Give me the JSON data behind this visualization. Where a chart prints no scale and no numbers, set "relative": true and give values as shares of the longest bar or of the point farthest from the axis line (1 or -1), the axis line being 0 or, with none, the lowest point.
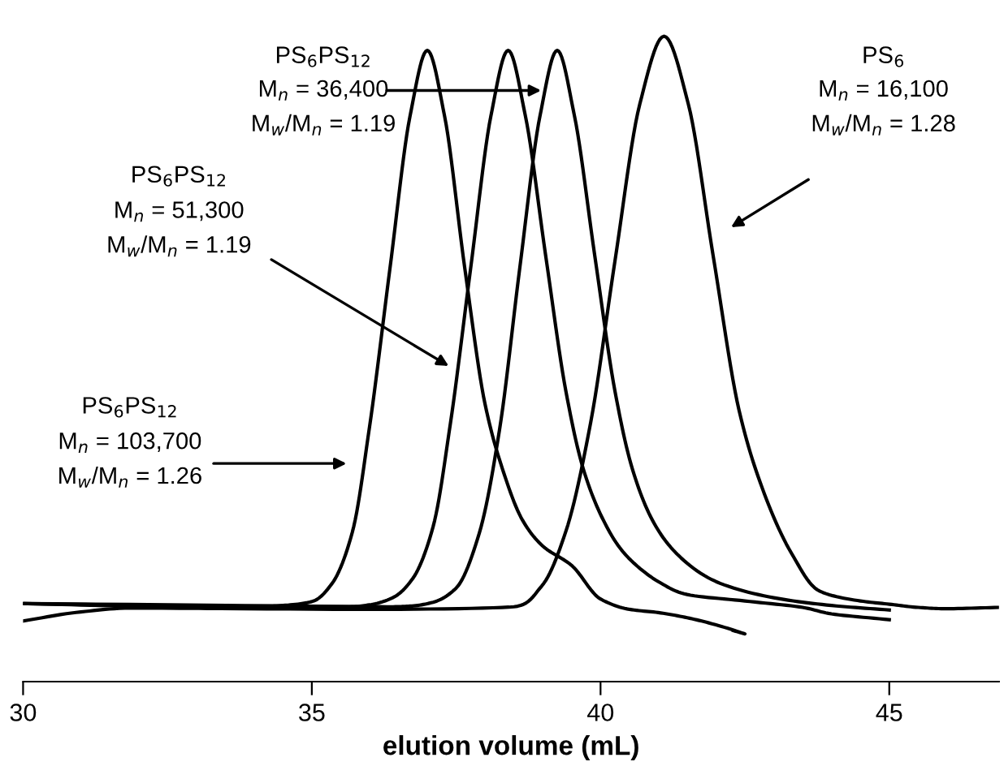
{
  "chart_data": {
    "type": "line",
    "relative": true,
    "xlabel": "elution volume (mL)",
    "xlim": [
      30,
      46.9
    ],
    "xticks": [
      30,
      35,
      40,
      45
    ],
    "grid": false,
    "legend": false,
    "marker": "none",
    "line_style": "solid",
    "series": [
      {
        "color": "#000000",
        "x": [
          30,
          32,
          34,
          34.5,
          35.0,
          35.35,
          35.7,
          36.0,
          36.35,
          36.7,
          37.0,
          37.3,
          37.65,
          38.0,
          38.3,
          38.65,
          39.0,
          39.5,
          40.0,
          40.5,
          41.0,
          41.5,
          42.0,
          42.5,
          42.3
        ],
        "values": [
          0.121,
          0.117,
          0.116,
          0.118,
          0.124,
          0.152,
          0.231,
          0.395,
          0.638,
          0.876,
          0.978,
          0.876,
          0.64,
          0.43,
          0.33,
          0.25,
          0.21,
          0.18,
          0.128,
          0.112,
          0.107,
          0.099,
          0.088,
          0.074,
          0.079
        ]
      },
      {
        "color": "#000000",
        "x": [
          30,
          34,
          35.6,
          36.0,
          36.4,
          36.75,
          37.1,
          37.4,
          37.75,
          38.1,
          38.4,
          38.7,
          39.05,
          39.4,
          39.7,
          40.05,
          40.4,
          41.0,
          41.5,
          42.5,
          43.5,
          44.0,
          45.0
        ],
        "values": [
          0.121,
          0.116,
          0.116,
          0.119,
          0.13,
          0.16,
          0.24,
          0.4,
          0.64,
          0.876,
          0.978,
          0.876,
          0.66,
          0.45,
          0.33,
          0.25,
          0.2,
          0.155,
          0.135,
          0.125,
          0.115,
          0.105,
          0.096
        ]
      },
      {
        "color": "#000000",
        "x": [
          30,
          36.3,
          36.7,
          37.1,
          37.5,
          37.9,
          38.25,
          38.6,
          38.95,
          39.25,
          39.55,
          39.9,
          40.25,
          40.55,
          40.9,
          41.3,
          42.0,
          43.0,
          44.0,
          45.0
        ],
        "values": [
          0.121,
          0.116,
          0.117,
          0.123,
          0.145,
          0.23,
          0.39,
          0.64,
          0.876,
          0.978,
          0.876,
          0.66,
          0.45,
          0.33,
          0.25,
          0.2,
          0.155,
          0.13,
          0.118,
          0.111
        ]
      },
      {
        "color": "#000000",
        "x": [
          30,
          31,
          32,
          36,
          38.5,
          38.98,
          39.4,
          39.83,
          40.25,
          40.68,
          41.1,
          41.52,
          41.95,
          42.4,
          42.8,
          43.3,
          43.8,
          44.5,
          45.0,
          45.5,
          46.0,
          46.9
        ],
        "values": [
          0.094,
          0.108,
          0.114,
          0.112,
          0.116,
          0.148,
          0.233,
          0.402,
          0.652,
          0.895,
          1.0,
          0.895,
          0.66,
          0.42,
          0.3,
          0.2,
          0.14,
          0.125,
          0.12,
          0.115,
          0.113,
          0.115
        ]
      }
    ],
    "annotations": [
      "PS$_{6}$PS$_{12}$",
      {
        "text": "M$_{n}$ = 36,400",
        "x": 38.97,
        "y": 0.916
      },
      "M$_{w}$/M$_{n}$ = 1.19",
      "PS$_{6}$PS$_{12}$",
      "M$_{n}$ = 51,300",
      "M$_{w}$/M$_{n}$ = 1.19",
      "PS$_{6}$PS$_{12}$",
      "M$_{n}$ = 103,700",
      "M$_{w}$/M$_{n}$ = 1.26",
      "PS$_{6}$",
      "M$_{n}$ = 16,100",
      "M$_{w}$/M$_{n}$ = 1.28"
    ]
  }
}
